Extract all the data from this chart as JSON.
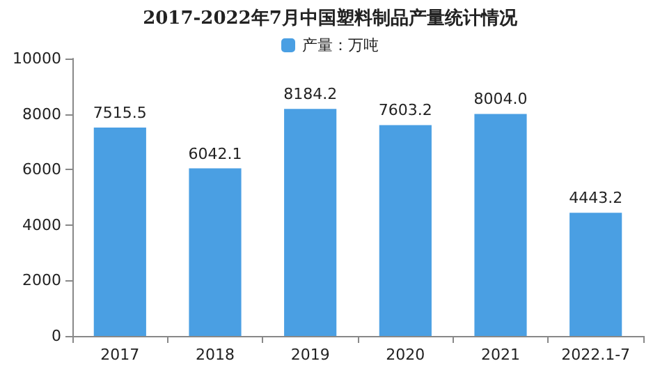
{
  "chart_data": {
    "type": "bar",
    "title": "2017-2022年7月中国塑料制品产量统计情况",
    "categories": [
      "2017",
      "2018",
      "2019",
      "2020",
      "2021",
      "2022.1-7"
    ],
    "series": [
      {
        "name": "产量：万吨",
        "color": "#4a9fe3",
        "values": [
          7515.5,
          6042.1,
          8184.2,
          7603.2,
          8004.0,
          4443.2
        ],
        "value_labels": [
          "7515.5",
          "6042.1",
          "8184.2",
          "7603.2",
          "8004.0",
          "4443.2"
        ]
      }
    ],
    "ylim": [
      0,
      10000
    ],
    "yticks": [
      0,
      2000,
      4000,
      6000,
      8000,
      10000
    ],
    "grid": false,
    "legend": "top"
  }
}
